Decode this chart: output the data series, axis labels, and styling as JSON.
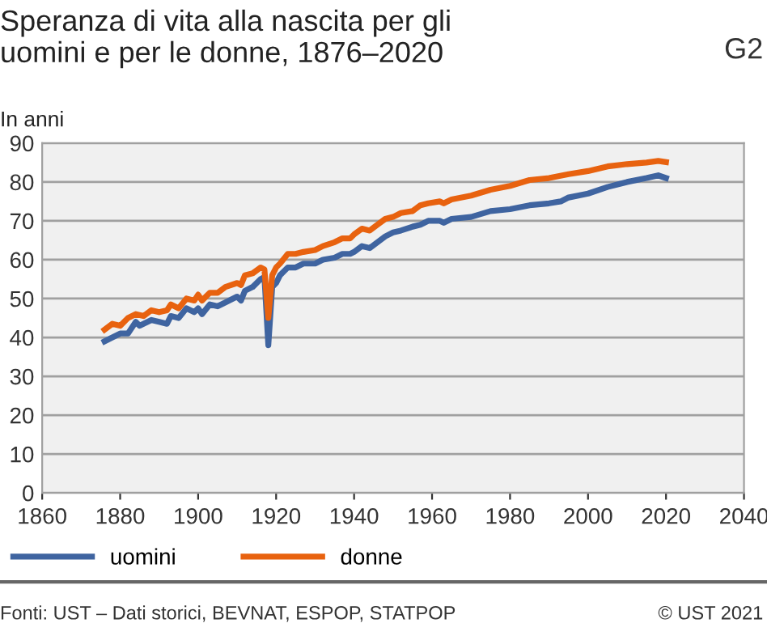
{
  "chart_data": {
    "type": "line",
    "title": "Speranza di vita alla nascita per gli\nuomini e per le donne, 1876–2020",
    "ylabel": "In anni",
    "annotations": [
      "G2",
      "Fonti: UST – Dati storici, BEVNAT, ESPOP, STATPOP",
      "© UST 2021"
    ],
    "xlim": [
      1860,
      2040
    ],
    "xticks": [
      1860,
      1880,
      1900,
      1920,
      1940,
      1960,
      1980,
      2000,
      2020,
      2040
    ],
    "ylim": [
      0,
      90
    ],
    "yticks": [
      0,
      10,
      20,
      30,
      40,
      50,
      60,
      70,
      80,
      90
    ],
    "grid": "y",
    "legend": "bottom",
    "marker": "none",
    "line_style": "solid",
    "series": [
      {
        "name": "uomini",
        "color": "#3f64a0",
        "x": [
          1876,
          1878,
          1880,
          1882,
          1884,
          1885,
          1888,
          1890,
          1892,
          1893,
          1895,
          1897,
          1899,
          1900,
          1901,
          1903,
          1905,
          1907,
          1910,
          1911,
          1912,
          1914,
          1916,
          1917,
          1918,
          1919,
          1920,
          1921,
          1923,
          1925,
          1927,
          1930,
          1932,
          1935,
          1937,
          1939,
          1940,
          1942,
          1944,
          1946,
          1948,
          1950,
          1952,
          1955,
          1957,
          1959,
          1962,
          1963,
          1965,
          1970,
          1975,
          1980,
          1985,
          1990,
          1993,
          1995,
          2000,
          2005,
          2010,
          2015,
          2018,
          2020
        ],
        "values": [
          39,
          40,
          41,
          41,
          44,
          43,
          44.5,
          44,
          43.5,
          45.5,
          45,
          47.5,
          46.5,
          47.5,
          46,
          48.5,
          48,
          49,
          50.5,
          49.5,
          52,
          53,
          55,
          55.5,
          38,
          53,
          54,
          56,
          58,
          58,
          59,
          59,
          60,
          60.5,
          61.5,
          61.5,
          62,
          63.5,
          63,
          64.5,
          66,
          67,
          67.5,
          68.5,
          69,
          70,
          70,
          69.5,
          70.5,
          71,
          72.5,
          73,
          74,
          74.5,
          75,
          76,
          77,
          78.7,
          80,
          81,
          81.7,
          81
        ]
      },
      {
        "name": "donne",
        "color": "#e8620f",
        "x": [
          1876,
          1878,
          1880,
          1882,
          1884,
          1886,
          1888,
          1890,
          1892,
          1893,
          1895,
          1897,
          1899,
          1900,
          1901,
          1903,
          1905,
          1907,
          1910,
          1911,
          1912,
          1914,
          1916,
          1917,
          1918,
          1919,
          1920,
          1921,
          1923,
          1925,
          1927,
          1930,
          1932,
          1935,
          1937,
          1939,
          1940,
          1942,
          1944,
          1946,
          1948,
          1950,
          1952,
          1955,
          1957,
          1959,
          1962,
          1963,
          1965,
          1970,
          1975,
          1980,
          1985,
          1990,
          1995,
          2000,
          2005,
          2010,
          2015,
          2018,
          2020
        ],
        "values": [
          42,
          43.5,
          43,
          45,
          46,
          45.5,
          47,
          46.5,
          47,
          48.5,
          47.5,
          50,
          49.5,
          51,
          49.5,
          51.5,
          51.5,
          53,
          54,
          53.5,
          56,
          56.5,
          58,
          57.5,
          45,
          56,
          58,
          59,
          61.5,
          61.5,
          62,
          62.5,
          63.5,
          64.5,
          65.5,
          65.5,
          66.5,
          68,
          67.5,
          69,
          70.5,
          71,
          72,
          72.5,
          74,
          74.5,
          75,
          74.5,
          75.5,
          76.5,
          78,
          79,
          80.5,
          81,
          82,
          82.8,
          84,
          84.6,
          85,
          85.4,
          85.1
        ]
      }
    ]
  }
}
